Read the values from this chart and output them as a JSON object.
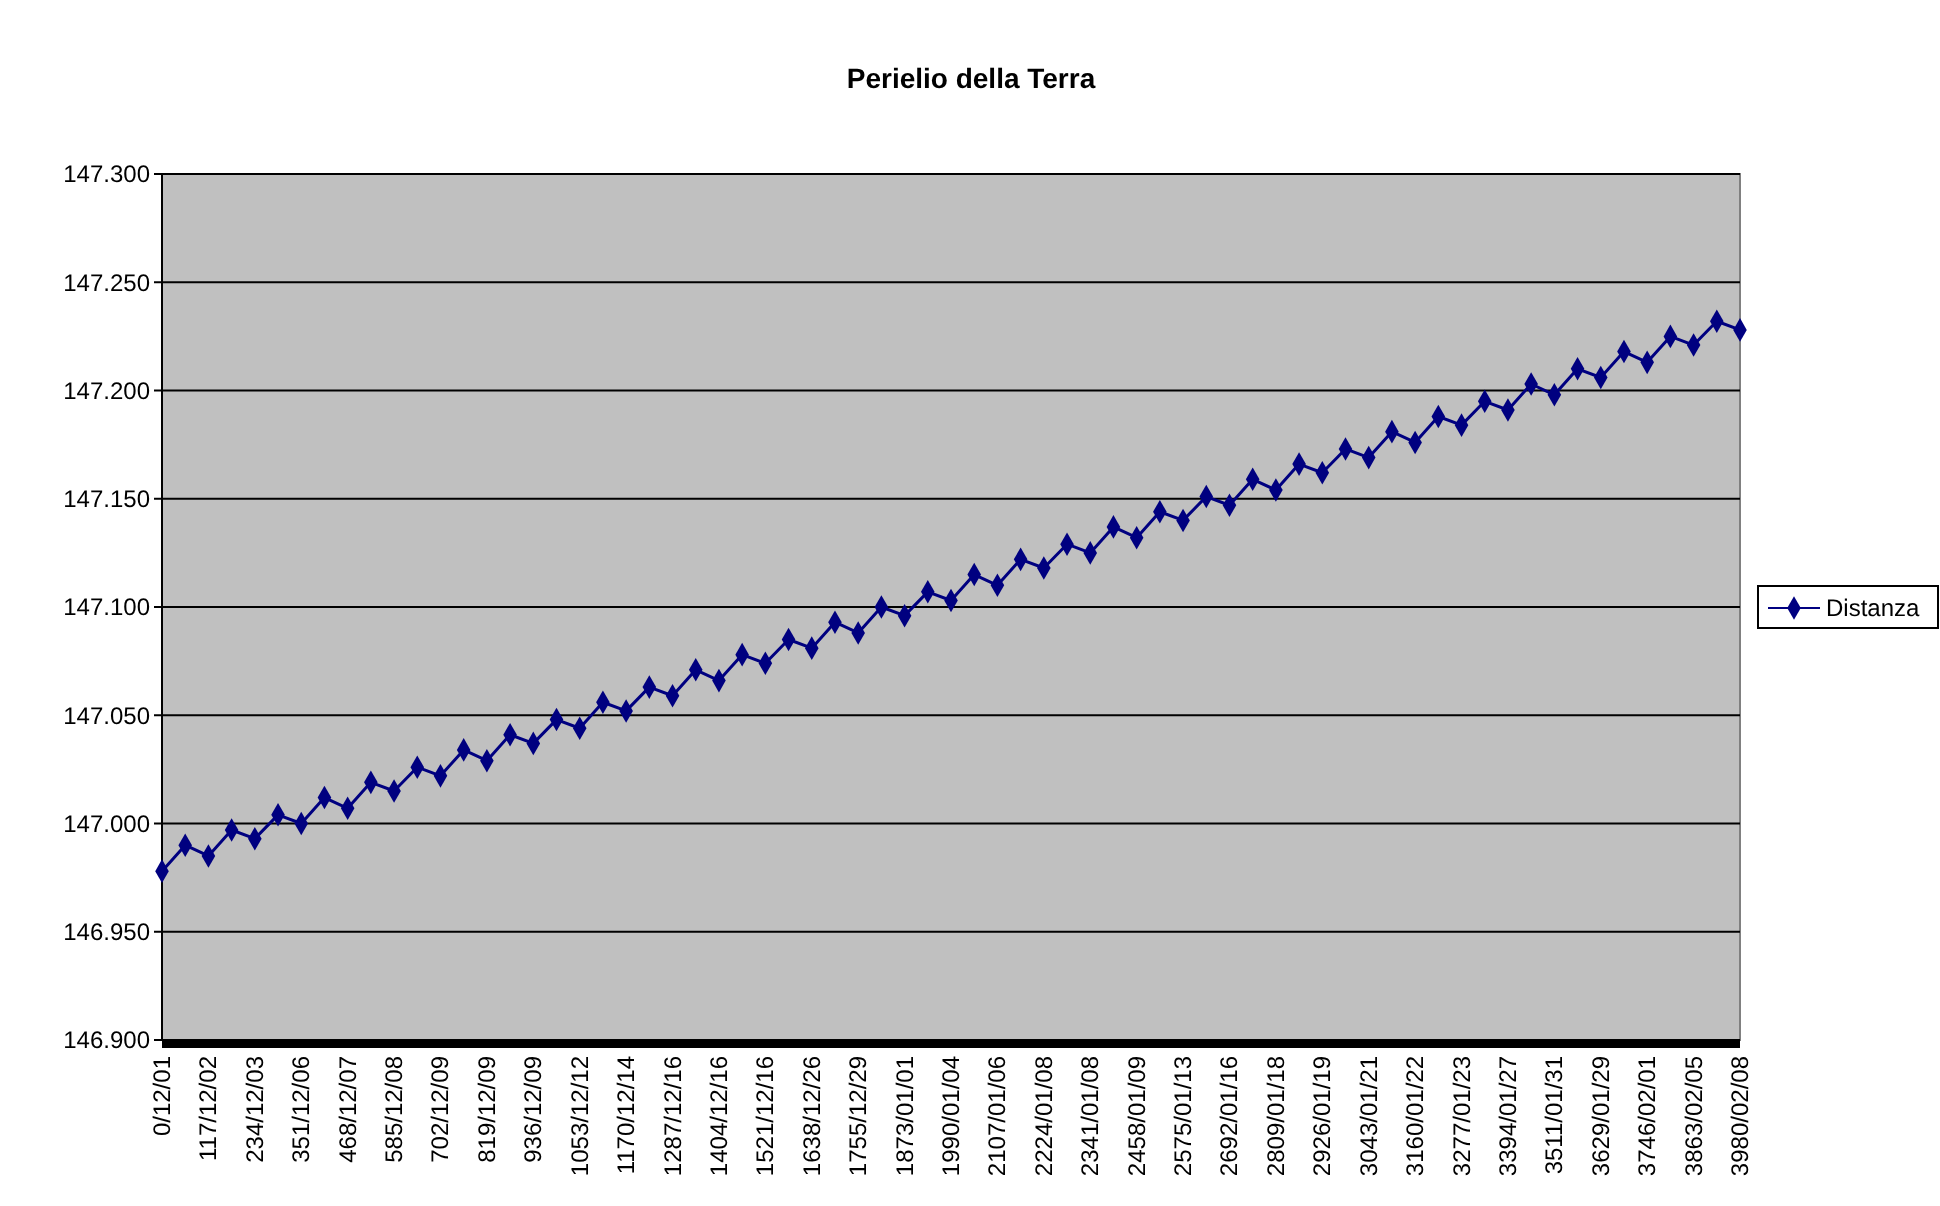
{
  "chart_data": {
    "type": "line",
    "title": "Perielio della Terra",
    "categories": [
      "0/12/01",
      null,
      "117/12/02",
      null,
      "234/12/03",
      null,
      "351/12/06",
      null,
      "468/12/07",
      null,
      "585/12/08",
      null,
      "702/12/09",
      null,
      "819/12/09",
      null,
      "936/12/09",
      null,
      "1053/12/12",
      null,
      "1170/12/14",
      null,
      "1287/12/16",
      null,
      "1404/12/16",
      null,
      "1521/12/16",
      null,
      "1638/12/26",
      null,
      "1755/12/29",
      null,
      "1873/01/01",
      null,
      "1990/01/04",
      null,
      "2107/01/06",
      null,
      "2224/01/08",
      null,
      "2341/01/08",
      null,
      "2458/01/09",
      null,
      "2575/01/13",
      null,
      "2692/01/16",
      null,
      "2809/01/18",
      null,
      "2926/01/19",
      null,
      "3043/01/21",
      null,
      "3160/01/22",
      null,
      "3277/01/23",
      null,
      "3394/01/27",
      null,
      "3511/01/31",
      null,
      "3629/01/29",
      null,
      "3746/02/01",
      null,
      "3863/02/05",
      null,
      "3980/02/08"
    ],
    "series": [
      {
        "name": "Distanza",
        "color": "#000080",
        "values": [
          146.978,
          146.99,
          146.985,
          146.997,
          146.993,
          147.004,
          147.0,
          147.012,
          147.007,
          147.019,
          147.015,
          147.026,
          147.022,
          147.034,
          147.029,
          147.041,
          147.037,
          147.048,
          147.044,
          147.056,
          147.052,
          147.063,
          147.059,
          147.071,
          147.066,
          147.078,
          147.074,
          147.085,
          147.081,
          147.093,
          147.088,
          147.1,
          147.096,
          147.107,
          147.103,
          147.115,
          147.11,
          147.122,
          147.118,
          147.129,
          147.125,
          147.137,
          147.132,
          147.144,
          147.14,
          147.151,
          147.147,
          147.159,
          147.154,
          147.166,
          147.162,
          147.173,
          147.169,
          147.181,
          147.176,
          147.188,
          147.184,
          147.195,
          147.191,
          147.203,
          147.198,
          147.21,
          147.206,
          147.218,
          147.213,
          147.225,
          147.221,
          147.232,
          147.228
        ]
      }
    ],
    "ylim": [
      146.9,
      147.3
    ],
    "yticks": [
      {
        "value": 146.9,
        "label": "146.900"
      },
      {
        "value": 146.95,
        "label": "146.950"
      },
      {
        "value": 147.0,
        "label": "147.000"
      },
      {
        "value": 147.05,
        "label": "147.050"
      },
      {
        "value": 147.1,
        "label": "147.100"
      },
      {
        "value": 147.15,
        "label": "147.150"
      },
      {
        "value": 147.2,
        "label": "147.200"
      },
      {
        "value": 147.25,
        "label": "147.250"
      },
      {
        "value": 147.3,
        "label": "147.300"
      }
    ],
    "grid": "y",
    "legend": "right",
    "marker": "diamond",
    "line_style": "solid"
  }
}
